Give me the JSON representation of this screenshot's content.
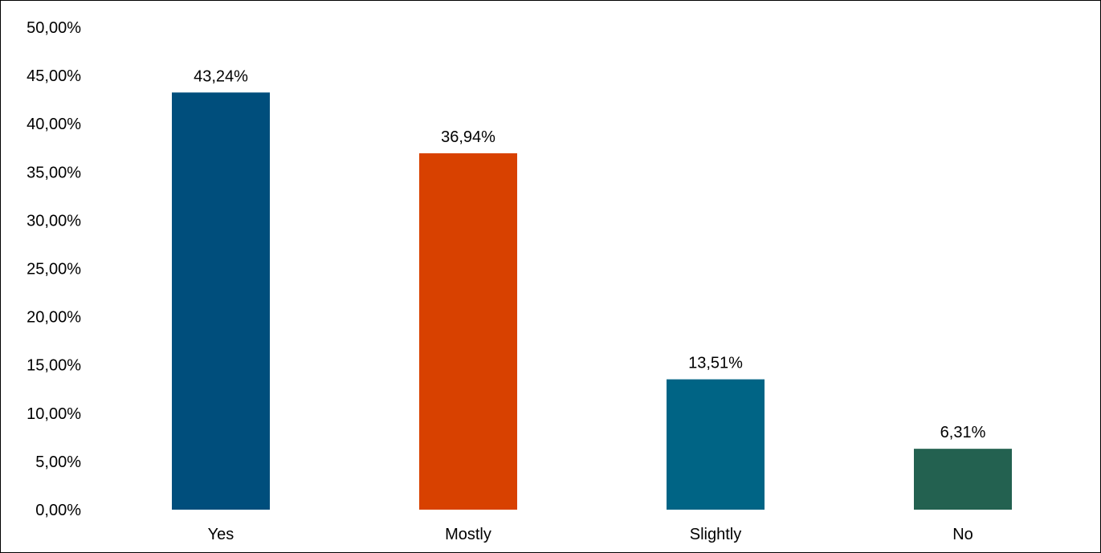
{
  "chart_data": {
    "type": "bar",
    "categories": [
      "Yes",
      "Mostly",
      "Slightly",
      "No"
    ],
    "values": [
      43.24,
      36.94,
      13.51,
      6.31
    ],
    "data_labels": [
      "43,24%",
      "36,94%",
      "13,51%",
      "6,31%"
    ],
    "colors": [
      "#004E7C",
      "#D84100",
      "#006485",
      "#236150"
    ],
    "ylim": [
      0,
      50
    ],
    "y_ticks": [
      0,
      5,
      10,
      15,
      20,
      25,
      30,
      35,
      40,
      45,
      50
    ],
    "y_tick_labels": [
      "0,00%",
      "5,00%",
      "10,00%",
      "15,00%",
      "20,00%",
      "25,00%",
      "30,00%",
      "35,00%",
      "40,00%",
      "45,00%",
      "50,00%"
    ],
    "grid": false,
    "legend": "none"
  }
}
